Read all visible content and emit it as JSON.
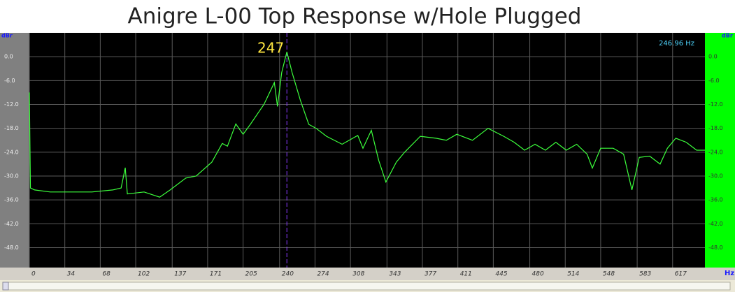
{
  "chart_data": {
    "type": "line",
    "title": "Anigre L-00 Top Response w/Hole Plugged",
    "y_unit": "dBr",
    "x_unit": "Hz",
    "readout": "246.96 Hz",
    "marker_x": 247,
    "color": "#3cff3c",
    "grid": true,
    "xlim": [
      0,
      648
    ],
    "ylim": [
      -53,
      6
    ],
    "xticks": [
      0,
      34,
      68,
      102,
      137,
      171,
      205,
      240,
      274,
      308,
      343,
      377,
      411,
      445,
      480,
      514,
      548,
      583,
      617
    ],
    "yticks": [
      {
        "value": 0,
        "label": "0.0"
      },
      {
        "value": -6,
        "label": "-6.0"
      },
      {
        "value": -12,
        "label": "-12.0"
      },
      {
        "value": -18,
        "label": "-18.0"
      },
      {
        "value": -24,
        "label": "-24.0"
      },
      {
        "value": -30,
        "label": "-30.0"
      },
      {
        "value": -36,
        "label": "-36.0"
      },
      {
        "value": -42,
        "label": "-42.0"
      },
      {
        "value": -48,
        "label": "-48.0"
      }
    ],
    "x": [
      0,
      1,
      5,
      20,
      40,
      60,
      80,
      88,
      92,
      94,
      110,
      125,
      135,
      150,
      160,
      175,
      185,
      190,
      198,
      205,
      212,
      225,
      235,
      238,
      242,
      247,
      252,
      260,
      268,
      275,
      285,
      300,
      315,
      320,
      328,
      335,
      342,
      352,
      360,
      375,
      390,
      400,
      410,
      425,
      440,
      455,
      465,
      475,
      485,
      495,
      505,
      515,
      525,
      535,
      540,
      548,
      560,
      570,
      578,
      585,
      595,
      605,
      612,
      620,
      630,
      640,
      648
    ],
    "values": [
      -9,
      -33,
      -33.5,
      -34,
      -34,
      -34,
      -33.5,
      -33,
      -27.9,
      -34.5,
      -34,
      -35.3,
      -33.5,
      -30.5,
      -30,
      -26.5,
      -21.8,
      -22.5,
      -16.9,
      -19.5,
      -17,
      -12,
      -6.5,
      -12.5,
      -4,
      1.2,
      -4,
      -11,
      -17,
      -18,
      -20,
      -22,
      -19.8,
      -23,
      -18.5,
      -26,
      -31.5,
      -26.5,
      -24,
      -20,
      -20.5,
      -21,
      -19.5,
      -21,
      -18,
      -20,
      -21.5,
      -23.5,
      -22,
      -23.5,
      -21.5,
      -23.5,
      -22,
      -24.5,
      -28,
      -23,
      -23,
      -24.5,
      -33.5,
      -25.3,
      -25,
      -27,
      -23,
      -20.5,
      -21.5,
      -23.5,
      -23.5
    ]
  }
}
